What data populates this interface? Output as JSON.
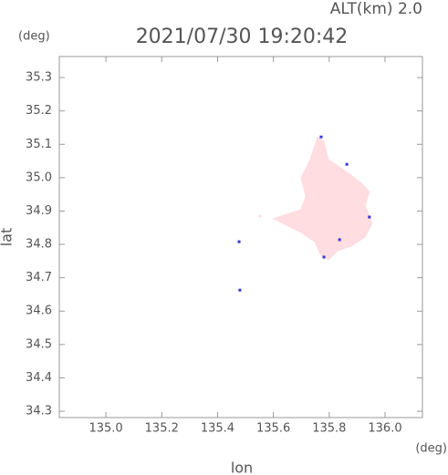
{
  "chart_data": {
    "type": "scatter",
    "title": "2021/07/30 19:20:42",
    "subtitle": "ALT(km) 2.0",
    "y_unit": "(deg)",
    "x_unit": "(deg)",
    "xlabel": "lon",
    "ylabel": "lat",
    "xlim": [
      134.833,
      136.134
    ],
    "ylim": [
      34.281,
      35.363
    ],
    "xticks": [
      {
        "value": 135.0,
        "label": "135.0"
      },
      135.2,
      135.4,
      135.6,
      135.8,
      {
        "value": 136.0,
        "label": "136.0"
      }
    ],
    "yticks": [
      34.3,
      34.4,
      34.5,
      34.6,
      34.7,
      34.8,
      34.9,
      {
        "value": 35.0,
        "label": "35.0"
      },
      35.1,
      35.2,
      35.3
    ],
    "series": [
      {
        "color": "#ffdde0",
        "fill": true,
        "x": [
          135.601,
          135.699,
          135.716,
          135.699,
          135.732,
          135.758,
          135.781,
          135.797,
          135.846,
          135.912,
          135.944,
          135.928,
          135.954,
          135.928,
          135.879,
          135.83,
          135.797,
          135.771,
          135.748,
          135.699,
          135.634
        ],
        "values": [
          34.877,
          34.904,
          34.945,
          34.999,
          35.054,
          35.122,
          35.109,
          35.054,
          35.027,
          34.986,
          34.958,
          34.917,
          34.863,
          34.822,
          34.795,
          34.781,
          34.754,
          34.767,
          34.808,
          34.836,
          34.863
        ]
      },
      {
        "color": "#ffdde0",
        "fill": false,
        "x": [
          135.552
        ],
        "values": [
          34.885
        ]
      },
      {
        "color": "#3333dd",
        "fill": false,
        "x": [
          135.477,
          135.48,
          135.771,
          135.863,
          135.944,
          135.781,
          135.837
        ],
        "values": [
          34.808,
          34.663,
          35.122,
          35.04,
          34.882,
          34.762,
          34.814
        ]
      }
    ]
  }
}
